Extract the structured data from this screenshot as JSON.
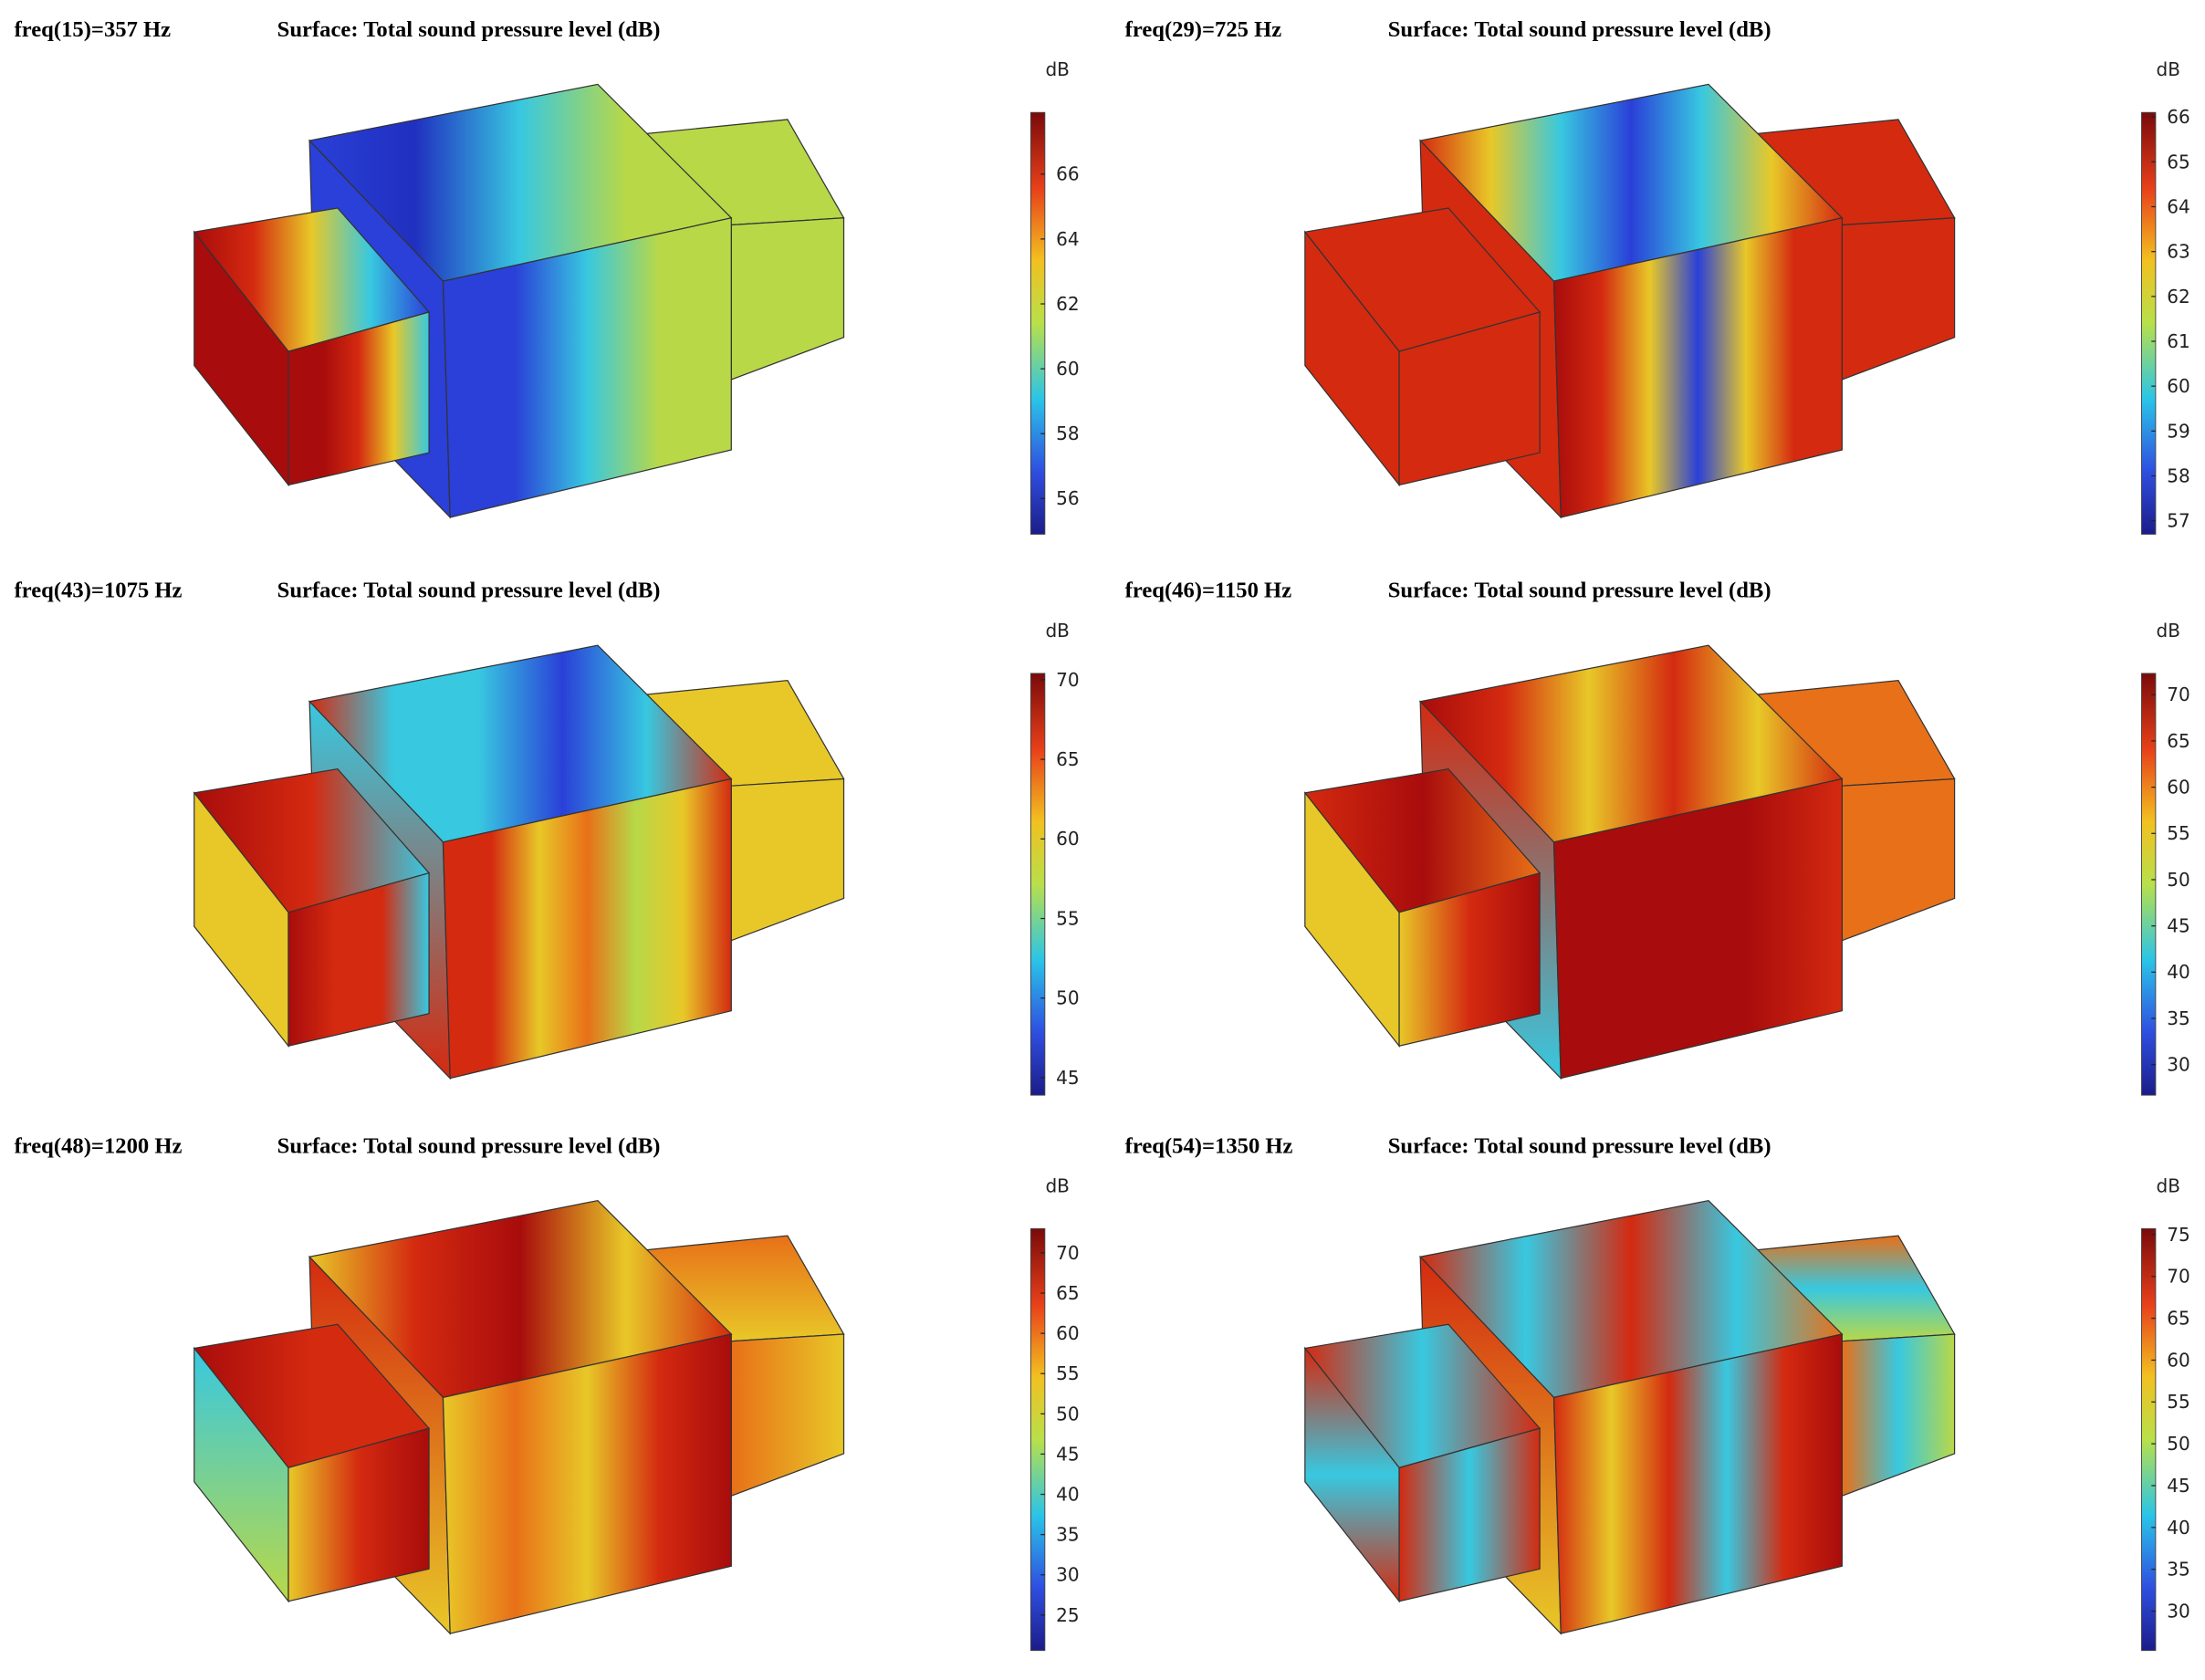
{
  "panels": [
    {
      "label": "freq(15)=357 Hz",
      "title": "Surface: Total sound pressure level (dB)",
      "unit": "dB",
      "colorbar": {
        "lim": [
          54.9,
          67.9
        ],
        "ticks": [
          56,
          58,
          60,
          62,
          64,
          66
        ]
      }
    },
    {
      "label": "freq(29)=725 Hz",
      "title": "Surface: Total sound pressure level (dB)",
      "unit": "dB",
      "colorbar": {
        "lim": [
          56.7,
          66.1
        ],
        "ticks": [
          57,
          58,
          59,
          60,
          61,
          62,
          63,
          64,
          65,
          66
        ]
      }
    },
    {
      "label": "freq(43)=1075 Hz",
      "title": "Surface: Total sound pressure level (dB)",
      "unit": "dB",
      "colorbar": {
        "lim": [
          43.9,
          70.4
        ],
        "ticks": [
          45,
          50,
          55,
          60,
          65,
          70
        ]
      }
    },
    {
      "label": "freq(46)=1150 Hz",
      "title": "Surface: Total sound pressure level (dB)",
      "unit": "dB",
      "colorbar": {
        "lim": [
          26.7,
          72.3
        ],
        "ticks": [
          30,
          35,
          40,
          45,
          50,
          55,
          60,
          65,
          70
        ]
      }
    },
    {
      "label": "freq(48)=1200 Hz",
      "title": "Surface: Total sound pressure level (dB)",
      "unit": "dB",
      "colorbar": {
        "lim": [
          20.6,
          73
        ],
        "ticks": [
          25,
          30,
          35,
          40,
          45,
          50,
          55,
          60,
          65,
          70
        ]
      }
    },
    {
      "label": "freq(54)=1350 Hz",
      "title": "Surface: Total sound pressure level (dB)",
      "unit": "dB",
      "colorbar": {
        "lim": [
          25.3,
          75.7
        ],
        "ticks": [
          30,
          35,
          40,
          45,
          50,
          55,
          60,
          65,
          70,
          75
        ]
      }
    }
  ]
}
